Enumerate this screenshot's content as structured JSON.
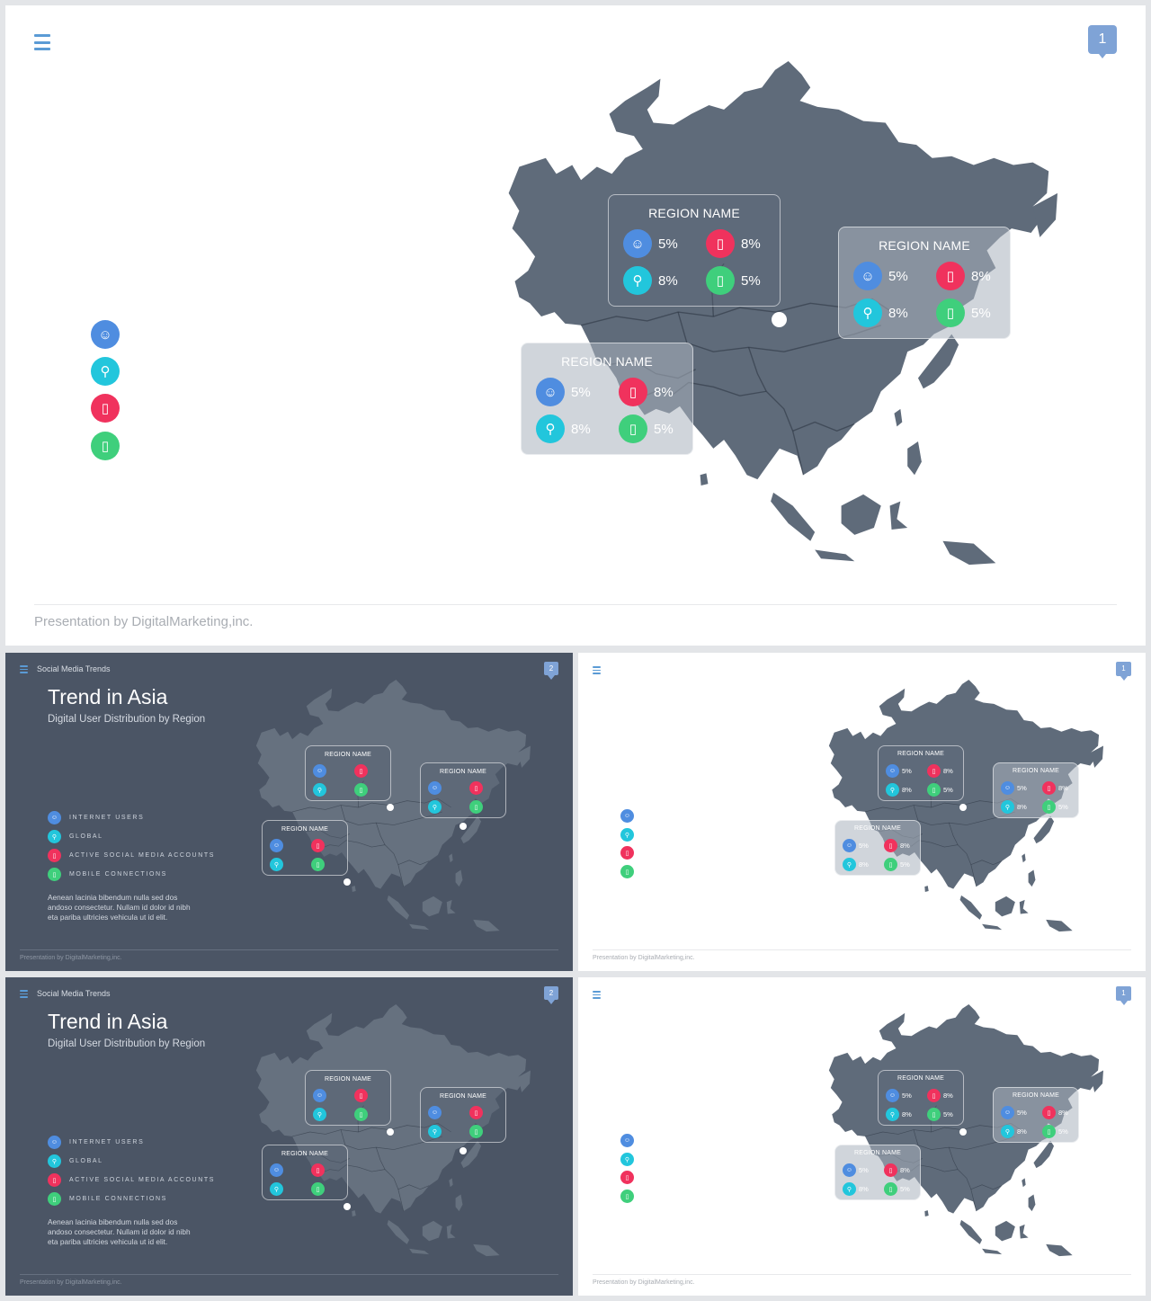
{
  "colors": {
    "land": "#5f6b7a",
    "land_dark": "#66717f",
    "accent": "#5b9bd5",
    "internet_users": "#4f8de0",
    "global": "#22c6dc",
    "social": "#f0325d",
    "mobile": "#3fcf7c",
    "dark_bg": "#4b5565"
  },
  "icons": {
    "internet_users": "user-icon",
    "global": "globe-pin-icon",
    "social": "phone-icon",
    "mobile": "mobile-icon",
    "menu": "hamburger-menu-icon"
  },
  "main_slide": {
    "page": "1",
    "footer": "Presentation  by DigitalMarketing,inc.",
    "regions": [
      {
        "name": "REGION NAME",
        "stats": [
          "5%",
          "8%",
          "8%",
          "5%"
        ]
      },
      {
        "name": "REGION NAME",
        "stats": [
          "5%",
          "8%",
          "8%",
          "5%"
        ]
      },
      {
        "name": "REGION NAME",
        "stats": [
          "5%",
          "8%",
          "8%",
          "5%"
        ]
      }
    ]
  },
  "dark_slide": {
    "topic": "Social Media Trends",
    "page": "2",
    "title": "Trend in Asia",
    "subtitle": "Digital User Distribution by Region",
    "legend": [
      "INTERNET USERS",
      "GLOBAL",
      "ACTIVE SOCIAL MEDIA ACCOUNTS",
      "MOBILE CONNECTIONS"
    ],
    "body": "Aenean lacinia bibendum nulla sed dos andoso consectetur. Nullam id dolor id nibh eta pariba ultricies vehicula ut id elit.",
    "footer": "Presentation  by DigitalMarketing,inc.",
    "region_name": "REGION NAME"
  },
  "light_thumb": {
    "page": "1",
    "footer": "Presentation  by DigitalMarketing,inc.",
    "region_name": "REGION NAME",
    "stats": [
      "5%",
      "8%",
      "8%",
      "5%"
    ]
  }
}
